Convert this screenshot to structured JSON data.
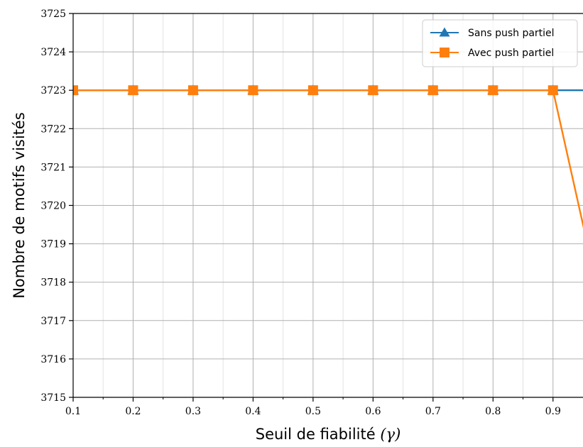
{
  "chart_data": {
    "type": "line",
    "title": "",
    "xlabel": "Seuil de fiabilité (γ)",
    "xlabel_main": "Seuil de fiabilité ",
    "xlabel_symbol": "(γ)",
    "ylabel": "Nombre de motifs visités",
    "xlim": [
      0.1,
      0.95
    ],
    "ylim": [
      3715,
      3725
    ],
    "xticks": [
      0.1,
      0.2,
      0.3,
      0.4,
      0.5,
      0.6,
      0.7,
      0.8,
      0.9
    ],
    "xtick_labels": [
      "0.1",
      "0.2",
      "0.3",
      "0.4",
      "0.5",
      "0.6",
      "0.7",
      "0.8",
      "0.9"
    ],
    "yticks": [
      3715,
      3716,
      3717,
      3718,
      3719,
      3720,
      3721,
      3722,
      3723,
      3724,
      3725
    ],
    "ytick_labels": [
      "3715",
      "3716",
      "3717",
      "3718",
      "3719",
      "3720",
      "3721",
      "3722",
      "3723",
      "3724",
      "3725"
    ],
    "minor_xticks": [
      0.15,
      0.25,
      0.35,
      0.45,
      0.55,
      0.65,
      0.75,
      0.85
    ],
    "grid": true,
    "legend_position": "top-right",
    "series": [
      {
        "name": "Sans push partiel",
        "color": "#1f77b4",
        "marker": "triangle",
        "x": [
          0.1,
          0.2,
          0.3,
          0.4,
          0.5,
          0.6,
          0.7,
          0.8,
          0.9,
          1.0
        ],
        "y": [
          3723,
          3723,
          3723,
          3723,
          3723,
          3723,
          3723,
          3723,
          3723,
          3723
        ]
      },
      {
        "name": "Avec push partiel",
        "color": "#ff7f0e",
        "marker": "square",
        "x": [
          0.1,
          0.2,
          0.3,
          0.4,
          0.5,
          0.6,
          0.7,
          0.8,
          0.9,
          1.0
        ],
        "y": [
          3723,
          3723,
          3723,
          3723,
          3723,
          3723,
          3723,
          3723,
          3723,
          3716
        ]
      }
    ]
  }
}
